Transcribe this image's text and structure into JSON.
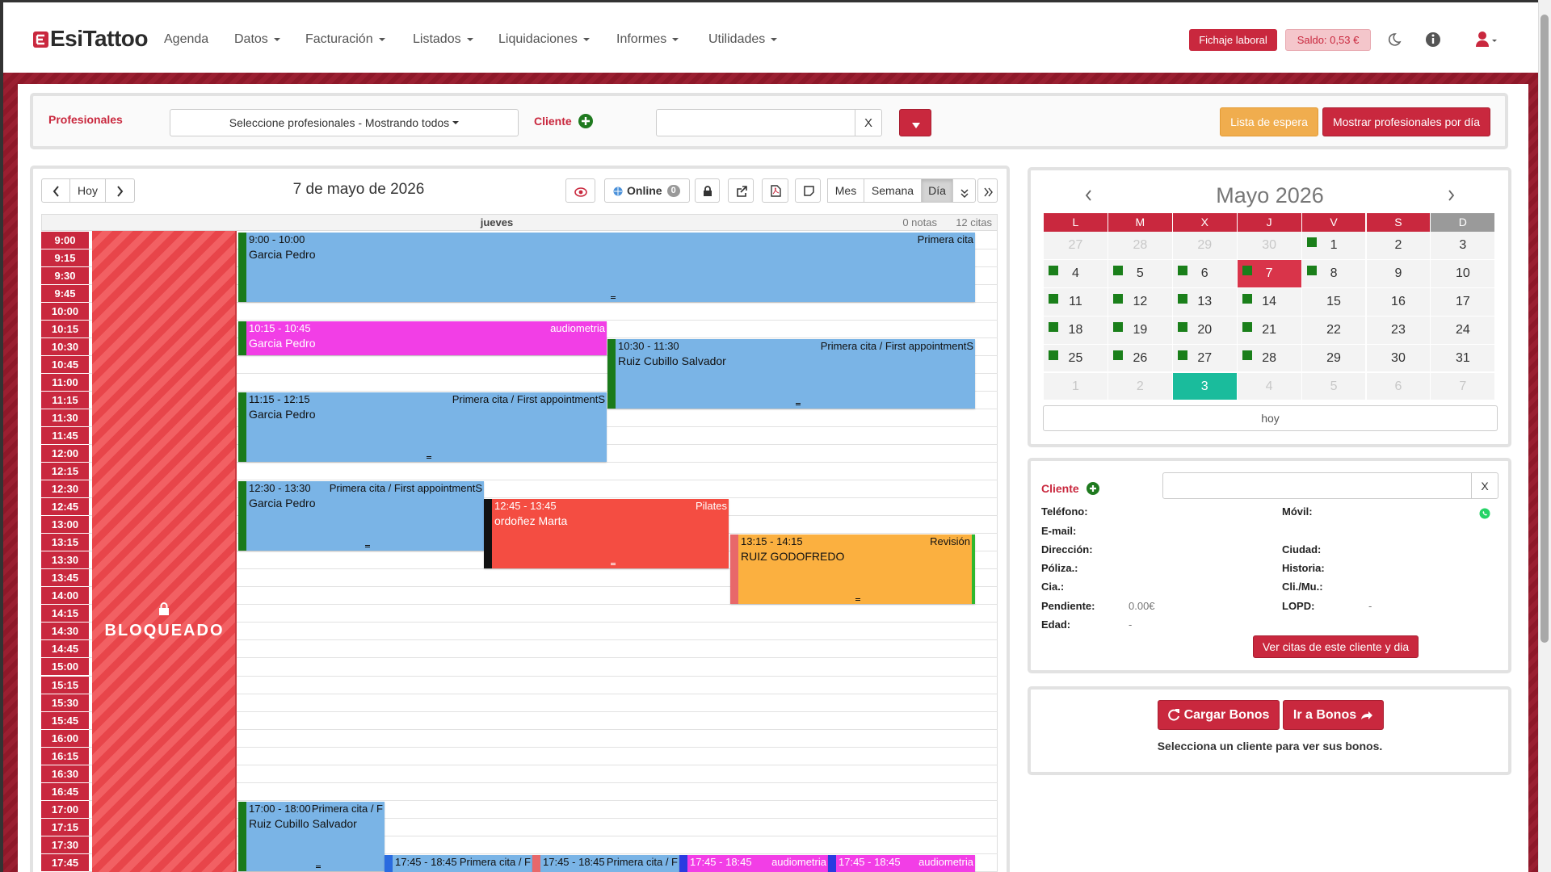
{
  "navbar": {
    "brand": "EsiTattoo",
    "menu": [
      "Agenda",
      "Datos",
      "Facturación",
      "Listados",
      "Liquidaciones",
      "Informes",
      "Utilidades"
    ],
    "fichaje": "Fichaje laboral",
    "saldo": "Saldo: 0,53 €"
  },
  "filters": {
    "professionals_label": "Profesionales",
    "professionals_select": "Seleccione profesionales - Mostrando todos",
    "client_label": "Cliente",
    "clear": "X",
    "waiting_list": "Lista de espera",
    "show_by_day": "Mostrar profesionales por día"
  },
  "agenda": {
    "today_button": "Hoy",
    "date_title": "7 de mayo de 2026",
    "online": "Online",
    "online_count": "0",
    "views": [
      "Mes",
      "Semana",
      "Día"
    ],
    "active_view": "Día",
    "weekday": "jueves",
    "notes": "0 notas",
    "appointments_count": "12 citas",
    "blocked": "BLOQUEADO",
    "times": [
      "9:00",
      "9:15",
      "9:30",
      "9:45",
      "10:00",
      "10:15",
      "10:30",
      "10:45",
      "11:00",
      "11:15",
      "11:30",
      "11:45",
      "12:00",
      "12:15",
      "12:30",
      "12:45",
      "13:00",
      "13:15",
      "13:30",
      "13:45",
      "14:00",
      "14:15",
      "14:30",
      "14:45",
      "15:00",
      "15:15",
      "15:30",
      "15:45",
      "16:00",
      "16:15",
      "16:30",
      "16:45",
      "17:00",
      "17:15",
      "17:30",
      "17:45"
    ],
    "events": [
      {
        "time": "9:00 - 10:00",
        "type": "Primera cita",
        "client": "Garcia Pedro",
        "color": "#7ab4e6",
        "stripe": "#1a7a1a"
      },
      {
        "time": "10:15 - 10:45",
        "type": "audiometria",
        "client": "Garcia Pedro",
        "color": "#f23ee6",
        "stripe": "#1a7a1a"
      },
      {
        "time": "10:30 - 11:30",
        "type": "Primera cita / First appointmentS",
        "client": "Ruiz Cubillo Salvador",
        "color": "#7ab4e6",
        "stripe": "#1a7a1a"
      },
      {
        "time": "11:15 - 12:15",
        "type": "Primera cita / First appointmentS",
        "client": "Garcia Pedro",
        "color": "#7ab4e6",
        "stripe": "#1a7a1a"
      },
      {
        "time": "12:30 - 13:30",
        "type": "Primera cita / First appointmentS",
        "client": "Garcia Pedro",
        "color": "#7ab4e6",
        "stripe": "#1a7a1a"
      },
      {
        "time": "12:45 - 13:45",
        "type": "Pilates",
        "client": "ordoñez Marta",
        "color": "#f44d42",
        "stripe": "#111111"
      },
      {
        "time": "13:15 - 14:15",
        "type": "Revisión",
        "client": "RUIZ GODOFREDO",
        "color": "#fbb040",
        "stripe": "#e8686a"
      },
      {
        "time": "17:00 - 18:00",
        "type": "Primera cita / F",
        "client": "Ruiz Cubillo Salvador",
        "color": "#7ab4e6",
        "stripe": "#1a7a1a"
      },
      {
        "time": "17:45 - 18:45",
        "type": "Primera cita / F",
        "color": "#7ab4e6",
        "stripe": "#2a6be0"
      },
      {
        "time": "17:45 - 18:45",
        "type": "Primera cita / F",
        "color": "#7ab4e6",
        "stripe": "#e8686a"
      },
      {
        "time": "17:45 - 18:45",
        "type": "audiometria",
        "color": "#f23ee6",
        "stripe": "#2a3be0"
      },
      {
        "time": "17:45 - 18:45",
        "type": "audiometria",
        "color": "#f23ee6",
        "stripe": "#2a3be0"
      }
    ]
  },
  "mini_calendar": {
    "title": "Mayo 2026",
    "weekdays": [
      "L",
      "M",
      "X",
      "J",
      "V",
      "S",
      "D"
    ],
    "days": [
      27,
      28,
      29,
      30,
      1,
      2,
      3,
      4,
      5,
      6,
      7,
      8,
      9,
      10,
      11,
      12,
      13,
      14,
      15,
      16,
      17,
      18,
      19,
      20,
      21,
      22,
      23,
      24,
      25,
      26,
      27,
      28,
      29,
      30,
      31,
      1,
      2,
      3,
      4,
      5,
      6,
      7
    ],
    "marked_days": [
      1,
      4,
      5,
      6,
      7,
      8,
      11,
      12,
      13,
      14,
      18,
      19,
      20,
      21,
      25,
      26,
      27,
      28
    ],
    "selected_day": 7,
    "today_next_month": 3,
    "today_button": "hoy"
  },
  "client_panel": {
    "title": "Cliente",
    "clear": "X",
    "left": [
      {
        "label": "Teléfono:"
      },
      {
        "label": "E-mail:"
      },
      {
        "label": "Dirección:"
      },
      {
        "label": "Póliza.:"
      },
      {
        "label": "Cia.:"
      },
      {
        "label": "Pendiente:",
        "value": "0.00€"
      },
      {
        "label": "Edad:",
        "value": "-"
      }
    ],
    "right": [
      {
        "label": "Móvil:"
      },
      null,
      {
        "label": "Ciudad:"
      },
      {
        "label": "Historia:"
      },
      {
        "label": "Cli./Mu.:"
      },
      {
        "label": "LOPD:",
        "value": "-"
      }
    ],
    "button": "Ver citas de este cliente y dia"
  },
  "bonos": {
    "load": "Cargar Bonos",
    "go": "Ir a Bonos",
    "message": "Selecciona un cliente para ver sus bonos."
  }
}
